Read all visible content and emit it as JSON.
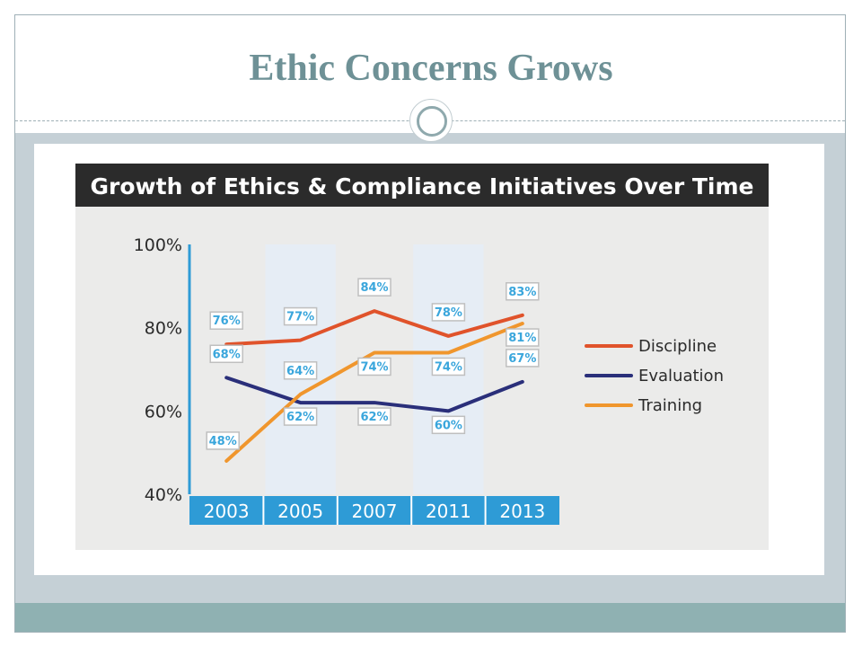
{
  "slide": {
    "title": "Ethic Concerns Grows"
  },
  "colors": {
    "title": "#6e9196",
    "band": "#c5d0d6",
    "footer": "#8fb1b2",
    "header_bar": "#2b2b2b",
    "axis_blue": "#2e9bd6",
    "label_blue": "#3aa6dc",
    "shaded_column": "#e6edf5"
  },
  "chart_data": {
    "type": "line",
    "title": "Growth of Ethics & Compliance Initiatives Over Time",
    "categories": [
      "2003",
      "2005",
      "2007",
      "2011",
      "2013"
    ],
    "ylim": [
      40,
      100
    ],
    "yticks": [
      "40%",
      "60%",
      "80%",
      "100%"
    ],
    "shaded_categories": [
      "2005",
      "2011"
    ],
    "grid": false,
    "legend_position": "right",
    "series": [
      {
        "name": "Discipline",
        "color": "#e0532b",
        "values": [
          76,
          77,
          84,
          78,
          83
        ],
        "labels": [
          "76%",
          "77%",
          "84%",
          "78%",
          "83%"
        ]
      },
      {
        "name": "Evaluation",
        "color": "#2a2f7a",
        "values": [
          68,
          62,
          62,
          60,
          67
        ],
        "labels": [
          "68%",
          "62%",
          "62%",
          "60%",
          "67%"
        ]
      },
      {
        "name": "Training",
        "color": "#f0962d",
        "values": [
          48,
          64,
          74,
          74,
          81
        ],
        "labels": [
          "48%",
          "64%",
          "74%",
          "74%",
          "81%"
        ]
      }
    ]
  }
}
